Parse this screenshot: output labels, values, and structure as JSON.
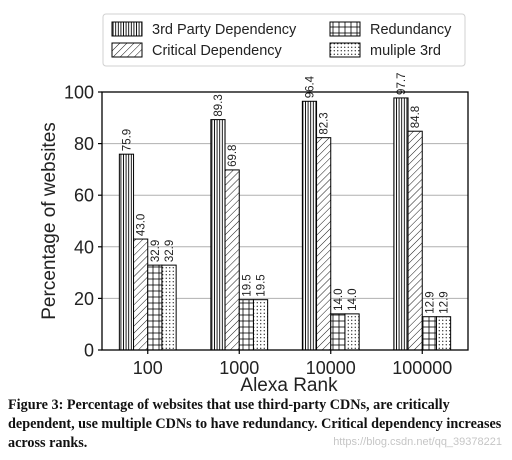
{
  "chart_data": {
    "type": "bar",
    "categories": [
      "100",
      "1000",
      "10000",
      "100000"
    ],
    "series": [
      {
        "name": "3rd Party Dependency",
        "values": [
          75.9,
          89.3,
          96.4,
          97.7
        ],
        "pattern": "vertical-lines"
      },
      {
        "name": "Critical Dependency",
        "values": [
          43.0,
          69.8,
          82.3,
          84.8
        ],
        "pattern": "diagonal-lines"
      },
      {
        "name": "Redundancy",
        "values": [
          32.9,
          19.5,
          14.0,
          12.9
        ],
        "pattern": "grid"
      },
      {
        "name": "muliple 3rd",
        "values": [
          32.9,
          19.5,
          14.0,
          12.9
        ],
        "pattern": "dots"
      }
    ],
    "data_labels": [
      [
        "75.9",
        "43.0",
        "32.9",
        "32.9"
      ],
      [
        "89.3",
        "69.8",
        "19.5",
        "19.5"
      ],
      [
        "96.4",
        "82.3",
        "14.0",
        "14.0"
      ],
      [
        "97.7",
        "84.8",
        "12.9",
        "12.9"
      ]
    ],
    "xlabel": "Alexa Rank",
    "ylabel": "Percentage of websites",
    "ylim": [
      0,
      100
    ],
    "yticks": [
      0,
      20,
      40,
      60,
      80,
      100
    ],
    "grid": true,
    "legend": "top",
    "colors": {
      "bar_fill": "#ffffff",
      "bar_stroke": "#000000",
      "grid": "#b0b0b0",
      "axis": "#000000"
    }
  },
  "caption": {
    "figure": "Figure 3:",
    "text": "Percentage of websites that use third-party CDNs, are critically dependent, use multiple CDNs to have redundancy. Critical dependency increases across ranks."
  },
  "watermark": "https://blog.csdn.net/qq_39378221"
}
